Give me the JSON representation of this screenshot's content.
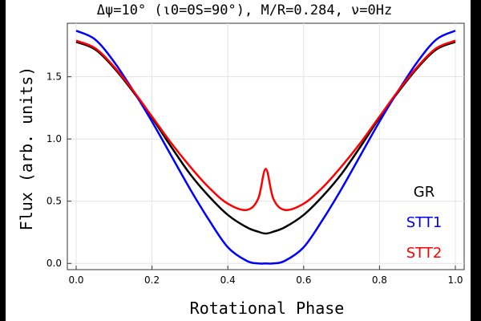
{
  "chart_data": {
    "type": "line",
    "title": "Δψ=10° (ι0=ΘS=90°), M/R=0.284, ν=0Hz",
    "xlabel": "Rotational Phase",
    "ylabel": "Flux (arb. units)",
    "xlim": [
      0.0,
      1.0
    ],
    "ylim": [
      -0.05,
      1.93
    ],
    "x_ticks": [
      "0.0",
      "0.2",
      "0.4",
      "0.6",
      "0.8",
      "1.0"
    ],
    "y_ticks": [
      "0.0",
      "0.5",
      "1.0",
      "1.5"
    ],
    "grid": true,
    "legend_position": "bottom-right",
    "x": [
      0.0,
      0.05,
      0.1,
      0.15,
      0.2,
      0.25,
      0.3,
      0.35,
      0.4,
      0.45,
      0.48,
      0.5,
      0.52,
      0.55,
      0.6,
      0.65,
      0.7,
      0.75,
      0.8,
      0.85,
      0.9,
      0.95,
      1.0
    ],
    "series": [
      {
        "name": "GR",
        "color": "#000000",
        "values": [
          1.78,
          1.72,
          1.57,
          1.38,
          1.17,
          0.94,
          0.72,
          0.54,
          0.39,
          0.29,
          0.255,
          0.24,
          0.255,
          0.29,
          0.39,
          0.54,
          0.72,
          0.94,
          1.17,
          1.38,
          1.57,
          1.72,
          1.78
        ]
      },
      {
        "name": "STT1",
        "color": "#0000ff",
        "values": [
          1.87,
          1.8,
          1.62,
          1.39,
          1.14,
          0.87,
          0.6,
          0.35,
          0.13,
          0.02,
          0.0,
          0.0,
          0.0,
          0.02,
          0.13,
          0.35,
          0.6,
          0.87,
          1.14,
          1.39,
          1.62,
          1.8,
          1.87
        ]
      },
      {
        "name": "STT2",
        "color": "#ff0000",
        "values": [
          1.79,
          1.73,
          1.58,
          1.39,
          1.18,
          0.97,
          0.78,
          0.61,
          0.48,
          0.43,
          0.52,
          0.76,
          0.52,
          0.43,
          0.48,
          0.61,
          0.78,
          0.97,
          1.18,
          1.39,
          1.58,
          1.73,
          1.79
        ]
      }
    ]
  }
}
